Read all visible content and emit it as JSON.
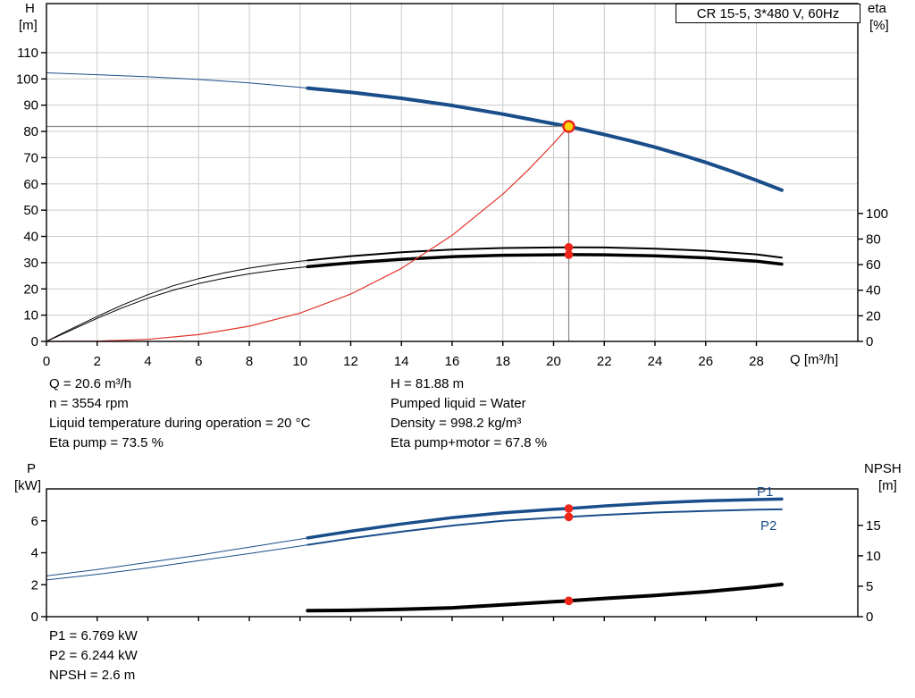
{
  "title_box": {
    "text": "CR 15-5, 3*480 V, 60Hz"
  },
  "labels": {
    "h": "H",
    "m": "[m]",
    "eta": "eta",
    "pct": "[%]",
    "q": "Q [m³/h]",
    "p": "P",
    "kw": "[kW]",
    "npsh": "NPSH",
    "npsh_m": "[m]",
    "p1": "P1",
    "p2": "P2"
  },
  "info_top_left": [
    "Q = 20.6 m³/h",
    "n = 3554 rpm",
    "Liquid temperature during operation = 20 °C",
    "Eta pump = 73.5 %"
  ],
  "info_top_right": [
    "H = 81.88 m",
    "Pumped liquid = Water",
    "Density = 998.2 kg/m³",
    "Eta pump+motor = 67.8 %"
  ],
  "info_bottom": [
    "P1 = 6.769 kW",
    "P2 = 6.244 kW",
    "NPSH = 2.6 m"
  ],
  "colors": {
    "curve_blue": "#1a4e8a",
    "curve_black": "#000000",
    "duty_red": "#e0342b",
    "marker_red": "#ee2519",
    "op_fill": "#ffd60a",
    "op_ring": "#e8251c",
    "grid": "#cccccc",
    "op_line": "#888888"
  },
  "chart_data": [
    {
      "type": "line",
      "name": "hq-eta-chart",
      "x_label": "Q [m³/h]",
      "y_left_label": "H [m]",
      "y_right_label": "eta [%]",
      "x_range": [
        0,
        32
      ],
      "x_ticks": [
        0,
        2,
        4,
        6,
        8,
        10,
        12,
        14,
        16,
        18,
        20,
        22,
        24,
        26,
        28
      ],
      "y_left_range": [
        0,
        128.7
      ],
      "y_left_ticks": [
        0,
        10,
        20,
        30,
        40,
        50,
        60,
        70,
        80,
        90,
        100,
        110
      ],
      "y_right_range": [
        0,
        264
      ],
      "y_right_ticks": [
        0,
        20,
        40,
        60,
        80,
        100
      ],
      "grid": true,
      "series": [
        {
          "name": "Eta pump",
          "axis": "right",
          "color": "#000000",
          "width": 2,
          "points_thin": [
            [
              0,
              0
            ],
            [
              1,
              10
            ],
            [
              2,
              19.5
            ],
            [
              3,
              28.5
            ],
            [
              4,
              36.5
            ],
            [
              5,
              43.5
            ],
            [
              6,
              49
            ],
            [
              7,
              53.5
            ],
            [
              8,
              57.3
            ],
            [
              9,
              60.3
            ],
            [
              10,
              62.7
            ],
            [
              10.3,
              63.3
            ]
          ],
          "points": [
            [
              10.3,
              63.3
            ],
            [
              12,
              66.6
            ],
            [
              14,
              69.6
            ],
            [
              16,
              71.8
            ],
            [
              18,
              73.0
            ],
            [
              20,
              73.4
            ],
            [
              20.6,
              73.5
            ],
            [
              22,
              73.4
            ],
            [
              24,
              72.5
            ],
            [
              26,
              70.8
            ],
            [
              28,
              68.0
            ],
            [
              29,
              65.5
            ]
          ]
        },
        {
          "name": "Eta pump+motor",
          "axis": "right",
          "color": "#000000",
          "width": 3.5,
          "points_thin": [
            [
              0,
              0
            ],
            [
              1,
              9
            ],
            [
              2,
              18
            ],
            [
              3,
              26.3
            ],
            [
              4,
              33.7
            ],
            [
              5,
              40.1
            ],
            [
              6,
              45.2
            ],
            [
              7,
              49.3
            ],
            [
              8,
              52.8
            ],
            [
              9,
              55.6
            ],
            [
              10,
              57.8
            ],
            [
              10.3,
              58.4
            ]
          ],
          "points": [
            [
              10.3,
              58.4
            ],
            [
              12,
              61.4
            ],
            [
              14,
              64.2
            ],
            [
              16,
              66.2
            ],
            [
              18,
              67.3
            ],
            [
              20,
              67.7
            ],
            [
              20.6,
              67.8
            ],
            [
              22,
              67.7
            ],
            [
              24,
              66.9
            ],
            [
              26,
              65.3
            ],
            [
              28,
              62.7
            ],
            [
              29,
              60.4
            ]
          ]
        },
        {
          "name": "Duty curve",
          "axis": "left",
          "color": "#e0342b",
          "width": 1.2,
          "points": [
            [
              0,
              0
            ],
            [
              2,
              0.1
            ],
            [
              4,
              0.8
            ],
            [
              6,
              2.6
            ],
            [
              8,
              5.8
            ],
            [
              10,
              10.8
            ],
            [
              12,
              18.0
            ],
            [
              14,
              27.8
            ],
            [
              16,
              40.4
            ],
            [
              18,
              56.1
            ],
            [
              19,
              65.3
            ],
            [
              20,
              75.4
            ],
            [
              20.6,
              81.9
            ]
          ]
        },
        {
          "name": "H",
          "axis": "left",
          "color": "#1a4e8a",
          "width": 4,
          "points_thin": [
            [
              0,
              102.3
            ],
            [
              2,
              101.6
            ],
            [
              4,
              100.8
            ],
            [
              6,
              99.8
            ],
            [
              8,
              98.5
            ],
            [
              10,
              96.8
            ],
            [
              10.3,
              96.5
            ]
          ],
          "points": [
            [
              10.3,
              96.5
            ],
            [
              12,
              94.9
            ],
            [
              14,
              92.6
            ],
            [
              16,
              89.9
            ],
            [
              18,
              86.6
            ],
            [
              20,
              82.9
            ],
            [
              20.6,
              81.88
            ],
            [
              22,
              78.8
            ],
            [
              23,
              76.5
            ],
            [
              24,
              74.0
            ],
            [
              25,
              71.2
            ],
            [
              26,
              68.2
            ],
            [
              27,
              64.9
            ],
            [
              28,
              61.4
            ],
            [
              29,
              57.6
            ]
          ]
        }
      ],
      "operating_point": {
        "Q": 20.6,
        "H": 81.88
      },
      "markers": [
        {
          "Q": 20.6,
          "value": 73.5,
          "axis": "right",
          "label": "Eta pump"
        },
        {
          "Q": 20.6,
          "value": 67.8,
          "axis": "right",
          "label": "Eta pump+motor"
        }
      ]
    },
    {
      "type": "line",
      "name": "power-npsh-chart",
      "y_left_label": "P [kW]",
      "y_right_label": "NPSH [m]",
      "x_range": [
        0,
        32
      ],
      "x_ticks": [
        0,
        2,
        4,
        6,
        8,
        10,
        12,
        14,
        16,
        18,
        20,
        22,
        24,
        26,
        28
      ],
      "y_left_range": [
        0,
        8
      ],
      "y_left_ticks": [
        0,
        2,
        4,
        6
      ],
      "y_right_range": [
        0,
        21
      ],
      "y_right_ticks": [
        0,
        5,
        10,
        15
      ],
      "grid": false,
      "series": [
        {
          "name": "P1",
          "axis": "left",
          "color": "#1a4e8a",
          "width": 3.5,
          "points_thin": [
            [
              0,
              2.55
            ],
            [
              2,
              2.95
            ],
            [
              4,
              3.4
            ],
            [
              6,
              3.85
            ],
            [
              8,
              4.35
            ],
            [
              10,
              4.85
            ],
            [
              10.3,
              4.93
            ]
          ],
          "points": [
            [
              10.3,
              4.93
            ],
            [
              12,
              5.35
            ],
            [
              14,
              5.8
            ],
            [
              16,
              6.2
            ],
            [
              18,
              6.5
            ],
            [
              20,
              6.72
            ],
            [
              20.6,
              6.769
            ],
            [
              22,
              6.93
            ],
            [
              24,
              7.12
            ],
            [
              26,
              7.25
            ],
            [
              28,
              7.33
            ],
            [
              29,
              7.36
            ]
          ]
        },
        {
          "name": "P2",
          "axis": "left",
          "color": "#1a4e8a",
          "width": 2,
          "points_thin": [
            [
              0,
              2.3
            ],
            [
              2,
              2.65
            ],
            [
              4,
              3.05
            ],
            [
              6,
              3.5
            ],
            [
              8,
              3.95
            ],
            [
              10,
              4.42
            ],
            [
              10.3,
              4.5
            ]
          ],
          "points": [
            [
              10.3,
              4.5
            ],
            [
              12,
              4.9
            ],
            [
              14,
              5.32
            ],
            [
              16,
              5.7
            ],
            [
              18,
              6.0
            ],
            [
              20,
              6.2
            ],
            [
              20.6,
              6.244
            ],
            [
              22,
              6.37
            ],
            [
              24,
              6.52
            ],
            [
              26,
              6.62
            ],
            [
              28,
              6.7
            ],
            [
              29,
              6.72
            ]
          ]
        },
        {
          "name": "NPSH",
          "axis": "right",
          "color": "#000000",
          "width": 4,
          "points": [
            [
              10.3,
              1.0
            ],
            [
              12,
              1.05
            ],
            [
              14,
              1.2
            ],
            [
              16,
              1.45
            ],
            [
              18,
              1.95
            ],
            [
              20,
              2.45
            ],
            [
              20.6,
              2.6
            ],
            [
              22,
              3.0
            ],
            [
              24,
              3.5
            ],
            [
              26,
              4.1
            ],
            [
              28,
              4.85
            ],
            [
              29,
              5.3
            ]
          ]
        }
      ],
      "markers": [
        {
          "Q": 20.6,
          "value": 6.769,
          "axis": "left",
          "label": "P1"
        },
        {
          "Q": 20.6,
          "value": 6.244,
          "axis": "left",
          "label": "P2"
        },
        {
          "Q": 20.6,
          "value": 2.6,
          "axis": "right",
          "label": "NPSH"
        }
      ]
    }
  ]
}
